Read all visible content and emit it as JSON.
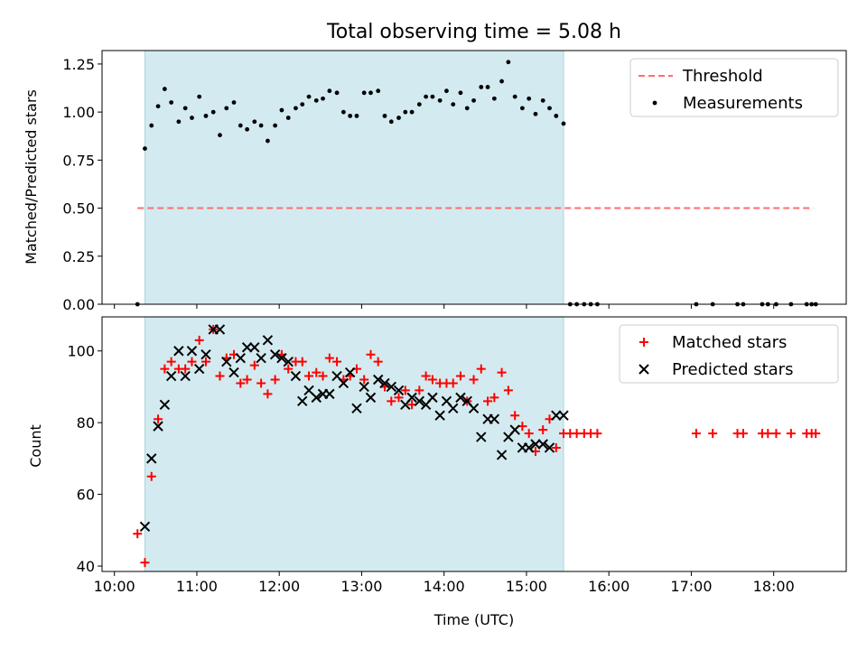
{
  "colors": {
    "shade": "#d3ebf0",
    "threshold": "#ff6e6e",
    "matched": "#ff0000",
    "predicted": "#000000",
    "measurement": "#000000"
  },
  "chart_data": [
    {
      "type": "scatter",
      "title": "Total observing time = 5.08 h",
      "xlabel": "",
      "ylabel": "Matched/Predicted stars",
      "x_axis_unit": "hours (UTC)",
      "xlim": [
        9.85,
        18.88
      ],
      "ylim": [
        0,
        1.32
      ],
      "yticks": [
        0.0,
        0.25,
        0.5,
        0.75,
        1.0,
        1.25
      ],
      "ytick_labels": [
        "0.00",
        "0.25",
        "0.50",
        "0.75",
        "1.00",
        "1.25"
      ],
      "shaded_span": [
        10.37,
        15.45
      ],
      "legend_position": "upper right",
      "series": [
        {
          "name": "Threshold",
          "kind": "dashed-line",
          "x": [
            10.28,
            18.48
          ],
          "y": [
            0.5,
            0.5
          ]
        },
        {
          "name": "Measurements",
          "kind": "dot",
          "x": [
            10.28,
            10.37,
            10.45,
            10.53,
            10.61,
            10.69,
            10.78,
            10.86,
            10.94,
            11.03,
            11.11,
            11.2,
            11.28,
            11.36,
            11.45,
            11.53,
            11.61,
            11.7,
            11.78,
            11.86,
            11.95,
            12.03,
            12.11,
            12.2,
            12.28,
            12.36,
            12.45,
            12.53,
            12.61,
            12.7,
            12.78,
            12.86,
            12.94,
            13.03,
            13.11,
            13.2,
            13.28,
            13.36,
            13.45,
            13.53,
            13.61,
            13.7,
            13.78,
            13.86,
            13.95,
            14.03,
            14.11,
            14.2,
            14.28,
            14.36,
            14.45,
            14.53,
            14.61,
            14.7,
            14.78,
            14.86,
            14.95,
            15.03,
            15.11,
            15.2,
            15.28,
            15.36,
            15.45,
            15.53,
            15.61,
            15.7,
            15.78,
            15.86,
            17.06,
            17.26,
            17.56,
            17.63,
            17.86,
            17.93,
            18.03,
            18.21,
            18.4,
            18.46,
            18.51
          ],
          "y": [
            0.0,
            0.81,
            0.93,
            1.03,
            1.12,
            1.05,
            0.95,
            1.02,
            0.97,
            1.08,
            0.98,
            1.0,
            0.88,
            1.02,
            1.05,
            0.93,
            0.91,
            0.95,
            0.93,
            0.85,
            0.93,
            1.01,
            0.97,
            1.02,
            1.04,
            1.08,
            1.06,
            1.07,
            1.11,
            1.1,
            1.0,
            0.98,
            0.98,
            1.1,
            1.1,
            1.11,
            0.98,
            0.95,
            0.97,
            1.0,
            1.0,
            1.04,
            1.08,
            1.08,
            1.06,
            1.11,
            1.04,
            1.1,
            1.02,
            1.06,
            1.13,
            1.13,
            1.07,
            1.16,
            1.26,
            1.08,
            1.02,
            1.07,
            0.99,
            1.06,
            1.02,
            0.98,
            0.94,
            0.0,
            0.0,
            0.0,
            0.0,
            0.0,
            0.0,
            0.0,
            0.0,
            0.0,
            0.0,
            0.0,
            0.0,
            0.0,
            0.0,
            0.0,
            0.0
          ]
        }
      ]
    },
    {
      "type": "scatter",
      "title": "",
      "xlabel": "Time (UTC)",
      "ylabel": "Count",
      "x_axis_unit": "hours (UTC)",
      "xlim": [
        9.85,
        18.88
      ],
      "ylim": [
        38.5,
        109.5
      ],
      "xticks": [
        10,
        11,
        12,
        13,
        14,
        15,
        16,
        17,
        18
      ],
      "xtick_labels": [
        "10:00",
        "11:00",
        "12:00",
        "13:00",
        "14:00",
        "15:00",
        "16:00",
        "17:00",
        "18:00"
      ],
      "yticks": [
        40,
        60,
        80,
        100
      ],
      "ytick_labels": [
        "40",
        "60",
        "80",
        "100"
      ],
      "shaded_span": [
        10.37,
        15.45
      ],
      "legend_position": "upper right",
      "series": [
        {
          "name": "Matched stars",
          "kind": "plus",
          "x": [
            10.28,
            10.37,
            10.45,
            10.53,
            10.61,
            10.69,
            10.78,
            10.86,
            10.94,
            11.03,
            11.11,
            11.2,
            11.28,
            11.36,
            11.45,
            11.53,
            11.61,
            11.7,
            11.78,
            11.86,
            11.95,
            12.03,
            12.11,
            12.2,
            12.28,
            12.36,
            12.45,
            12.53,
            12.61,
            12.7,
            12.78,
            12.86,
            12.94,
            13.03,
            13.11,
            13.2,
            13.28,
            13.36,
            13.45,
            13.53,
            13.61,
            13.7,
            13.78,
            13.86,
            13.95,
            14.03,
            14.11,
            14.2,
            14.28,
            14.36,
            14.45,
            14.53,
            14.61,
            14.7,
            14.78,
            14.86,
            14.95,
            15.03,
            15.11,
            15.2,
            15.28,
            15.36,
            15.45,
            15.53,
            15.61,
            15.7,
            15.78,
            15.86,
            17.06,
            17.26,
            17.56,
            17.63,
            17.86,
            17.93,
            18.03,
            18.21,
            18.4,
            18.46,
            18.51
          ],
          "y": [
            49,
            41,
            65,
            81,
            95,
            97,
            95,
            95,
            97,
            103,
            97,
            106,
            93,
            98,
            99,
            91,
            92,
            96,
            91,
            88,
            92,
            99,
            95,
            97,
            97,
            93,
            94,
            93,
            98,
            97,
            92,
            93,
            95,
            92,
            99,
            97,
            90,
            86,
            87,
            89,
            85,
            89,
            93,
            92,
            91,
            91,
            91,
            93,
            86,
            92,
            95,
            86,
            87,
            94,
            89,
            82,
            79,
            77,
            72,
            78,
            81,
            73,
            77,
            77,
            77,
            77,
            77,
            77,
            77,
            77,
            77,
            77,
            77,
            77,
            77,
            77,
            77,
            77,
            77
          ]
        },
        {
          "name": "Predicted stars",
          "kind": "x",
          "x": [
            10.37,
            10.45,
            10.53,
            10.61,
            10.69,
            10.78,
            10.86,
            10.94,
            11.03,
            11.11,
            11.2,
            11.28,
            11.36,
            11.45,
            11.53,
            11.61,
            11.7,
            11.78,
            11.86,
            11.95,
            12.03,
            12.11,
            12.2,
            12.28,
            12.36,
            12.45,
            12.53,
            12.61,
            12.7,
            12.78,
            12.86,
            12.94,
            13.03,
            13.11,
            13.2,
            13.28,
            13.36,
            13.45,
            13.53,
            13.61,
            13.7,
            13.78,
            13.86,
            13.95,
            14.03,
            14.11,
            14.2,
            14.28,
            14.36,
            14.45,
            14.53,
            14.61,
            14.7,
            14.78,
            14.86,
            14.95,
            15.03,
            15.11,
            15.2,
            15.28,
            15.36,
            15.45
          ],
          "y": [
            51,
            70,
            79,
            85,
            93,
            100,
            93,
            100,
            95,
            99,
            106,
            106,
            97,
            94,
            98,
            101,
            101,
            98,
            103,
            99,
            98,
            97,
            93,
            86,
            89,
            87,
            88,
            88,
            93,
            91,
            94,
            84,
            90,
            87,
            92,
            91,
            90,
            89,
            85,
            87,
            86,
            85,
            87,
            82,
            86,
            84,
            87,
            86,
            84,
            76,
            81,
            81,
            71,
            76,
            78,
            73,
            73,
            74,
            74,
            73,
            82,
            82
          ]
        }
      ]
    }
  ]
}
